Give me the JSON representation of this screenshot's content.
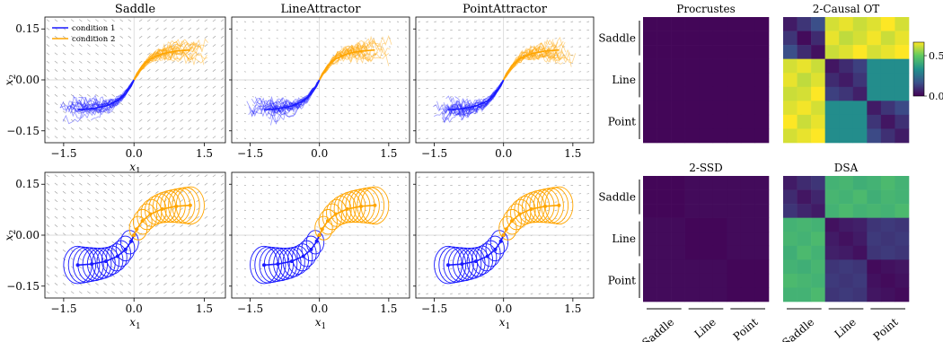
{
  "chart_data": [
    {
      "type": "line",
      "title": "Saddle",
      "xlabel": "x_1",
      "ylabel": "x_2",
      "xticks": [
        "−1.5",
        "0.0",
        "1.5"
      ],
      "yticks": [
        "0.15",
        "0.00",
        "−0.15"
      ],
      "xlim": [
        -1.9,
        1.95
      ],
      "ylim": [
        -0.185,
        0.185
      ],
      "trial_style": "noisy",
      "legend": [
        "condition 1",
        "condition 2"
      ],
      "series": [
        {
          "name": "condition 1",
          "x": [
            -1.2,
            -0.9,
            -0.6,
            -0.35,
            -0.18,
            -0.06,
            0.0
          ],
          "y": [
            -0.088,
            -0.085,
            -0.077,
            -0.062,
            -0.042,
            -0.018,
            0.0
          ]
        },
        {
          "name": "condition 2",
          "x": [
            0.0,
            0.06,
            0.18,
            0.35,
            0.6,
            0.9,
            1.2
          ],
          "y": [
            0.0,
            0.018,
            0.042,
            0.062,
            0.077,
            0.085,
            0.088
          ]
        }
      ]
    },
    {
      "type": "line",
      "title": "LineAttractor",
      "xlabel": "",
      "ylabel": "",
      "xticks": [
        "−1.5",
        "0.0",
        "1.5"
      ],
      "yticks": [],
      "xlim": [
        -1.9,
        1.95
      ],
      "ylim": [
        -0.185,
        0.185
      ],
      "trial_style": "noisy",
      "series": [
        {
          "name": "condition 1",
          "x": [
            -1.2,
            -0.9,
            -0.6,
            -0.35,
            -0.18,
            -0.06,
            0.0
          ],
          "y": [
            -0.088,
            -0.085,
            -0.077,
            -0.062,
            -0.042,
            -0.018,
            0.0
          ]
        },
        {
          "name": "condition 2",
          "x": [
            0.0,
            0.06,
            0.18,
            0.35,
            0.6,
            0.9,
            1.2
          ],
          "y": [
            0.0,
            0.018,
            0.042,
            0.062,
            0.077,
            0.085,
            0.088
          ]
        }
      ]
    },
    {
      "type": "line",
      "title": "PointAttractor",
      "xlabel": "",
      "ylabel": "",
      "xticks": [
        "−1.5",
        "0.0",
        "1.5"
      ],
      "yticks": [],
      "xlim": [
        -1.9,
        1.95
      ],
      "ylim": [
        -0.185,
        0.185
      ],
      "trial_style": "noisy",
      "series": [
        {
          "name": "condition 1",
          "x": [
            -1.2,
            -0.9,
            -0.6,
            -0.35,
            -0.18,
            -0.06,
            0.0
          ],
          "y": [
            -0.088,
            -0.085,
            -0.077,
            -0.062,
            -0.042,
            -0.018,
            0.0
          ]
        },
        {
          "name": "condition 2",
          "x": [
            0.0,
            0.06,
            0.18,
            0.35,
            0.6,
            0.9,
            1.2
          ],
          "y": [
            0.0,
            0.018,
            0.042,
            0.062,
            0.077,
            0.085,
            0.088
          ]
        }
      ]
    },
    {
      "type": "line",
      "title": "",
      "xlabel": "x_1",
      "ylabel": "x_2",
      "xticks": [
        "−1.5",
        "0.0",
        "1.5"
      ],
      "yticks": [
        "0.15",
        "0.00",
        "−0.15"
      ],
      "xlim": [
        -1.9,
        1.95
      ],
      "ylim": [
        -0.185,
        0.185
      ],
      "trial_style": "loops",
      "series": [
        {
          "name": "condition 1",
          "x": [
            -1.2,
            -0.9,
            -0.6,
            -0.35,
            -0.18,
            -0.06,
            0.0
          ],
          "y": [
            -0.088,
            -0.085,
            -0.077,
            -0.062,
            -0.042,
            -0.018,
            0.0
          ]
        },
        {
          "name": "condition 2",
          "x": [
            0.0,
            0.06,
            0.18,
            0.35,
            0.6,
            0.9,
            1.2
          ],
          "y": [
            0.0,
            0.018,
            0.042,
            0.062,
            0.077,
            0.085,
            0.088
          ]
        }
      ]
    },
    {
      "type": "line",
      "title": "",
      "xlabel": "x_1",
      "ylabel": "",
      "xticks": [
        "−1.5",
        "0.0",
        "1.5"
      ],
      "yticks": [],
      "xlim": [
        -1.9,
        1.95
      ],
      "ylim": [
        -0.185,
        0.185
      ],
      "trial_style": "loops",
      "series": [
        {
          "name": "condition 1",
          "x": [
            -1.2,
            -0.9,
            -0.6,
            -0.35,
            -0.18,
            -0.06,
            0.0
          ],
          "y": [
            -0.088,
            -0.085,
            -0.077,
            -0.062,
            -0.042,
            -0.018,
            0.0
          ]
        },
        {
          "name": "condition 2",
          "x": [
            0.0,
            0.06,
            0.18,
            0.35,
            0.6,
            0.9,
            1.2
          ],
          "y": [
            0.0,
            0.018,
            0.042,
            0.062,
            0.077,
            0.085,
            0.088
          ]
        }
      ]
    },
    {
      "type": "line",
      "title": "",
      "xlabel": "x_1",
      "ylabel": "",
      "xticks": [
        "−1.5",
        "0.0",
        "1.5"
      ],
      "yticks": [],
      "xlim": [
        -1.9,
        1.95
      ],
      "ylim": [
        -0.185,
        0.185
      ],
      "trial_style": "loops",
      "series": [
        {
          "name": "condition 1",
          "x": [
            -1.2,
            -0.9,
            -0.6,
            -0.35,
            -0.18,
            -0.06,
            0.0
          ],
          "y": [
            -0.088,
            -0.085,
            -0.077,
            -0.062,
            -0.042,
            -0.018,
            0.0
          ]
        },
        {
          "name": "condition 2",
          "x": [
            0.0,
            0.06,
            0.18,
            0.35,
            0.6,
            0.9,
            1.2
          ],
          "y": [
            0.0,
            0.018,
            0.042,
            0.062,
            0.077,
            0.085,
            0.088
          ]
        }
      ]
    },
    {
      "type": "heatmap",
      "title": "Procrustes",
      "row_labels": [
        "Saddle",
        "Line",
        "Point"
      ],
      "col_labels": [],
      "values": [
        [
          0.01,
          0.01,
          0.01,
          0.01,
          0.01,
          0.01,
          0.01,
          0.01,
          0.01
        ],
        [
          0.01,
          0.01,
          0.01,
          0.01,
          0.01,
          0.01,
          0.01,
          0.01,
          0.01
        ],
        [
          0.01,
          0.01,
          0.01,
          0.01,
          0.01,
          0.01,
          0.01,
          0.01,
          0.01
        ],
        [
          0.01,
          0.01,
          0.01,
          0.01,
          0.01,
          0.01,
          0.01,
          0.01,
          0.01
        ],
        [
          0.01,
          0.01,
          0.01,
          0.01,
          0.01,
          0.01,
          0.01,
          0.01,
          0.01
        ],
        [
          0.01,
          0.01,
          0.01,
          0.01,
          0.01,
          0.01,
          0.01,
          0.01,
          0.01
        ],
        [
          0.01,
          0.01,
          0.01,
          0.01,
          0.01,
          0.01,
          0.01,
          0.01,
          0.01
        ],
        [
          0.01,
          0.01,
          0.01,
          0.01,
          0.01,
          0.01,
          0.01,
          0.01,
          0.01
        ],
        [
          0.01,
          0.01,
          0.01,
          0.01,
          0.01,
          0.01,
          0.01,
          0.01,
          0.01
        ]
      ]
    },
    {
      "type": "heatmap",
      "title": "2-Causal OT",
      "row_labels": [],
      "col_labels": [],
      "colorbar": {
        "ticks": [
          "0.5",
          "0.0"
        ],
        "range": [
          0.0,
          0.62
        ]
      },
      "values": [
        [
          0.05,
          0.1,
          0.15,
          0.58,
          0.6,
          0.57,
          0.59,
          0.62,
          0.58
        ],
        [
          0.1,
          0.02,
          0.08,
          0.6,
          0.56,
          0.58,
          0.61,
          0.57,
          0.6
        ],
        [
          0.15,
          0.08,
          0.03,
          0.57,
          0.59,
          0.62,
          0.58,
          0.6,
          0.62
        ],
        [
          0.58,
          0.6,
          0.57,
          0.04,
          0.08,
          0.12,
          0.3,
          0.3,
          0.3
        ],
        [
          0.6,
          0.56,
          0.59,
          0.08,
          0.05,
          0.1,
          0.3,
          0.3,
          0.3
        ],
        [
          0.57,
          0.58,
          0.62,
          0.12,
          0.1,
          0.06,
          0.3,
          0.3,
          0.3
        ],
        [
          0.59,
          0.61,
          0.58,
          0.3,
          0.3,
          0.3,
          0.05,
          0.1,
          0.14
        ],
        [
          0.62,
          0.57,
          0.6,
          0.3,
          0.3,
          0.3,
          0.1,
          0.04,
          0.09
        ],
        [
          0.58,
          0.6,
          0.62,
          0.3,
          0.3,
          0.3,
          0.14,
          0.09,
          0.05
        ]
      ]
    },
    {
      "type": "heatmap",
      "title": "2-SSD",
      "row_labels": [
        "Saddle",
        "Line",
        "Point"
      ],
      "col_labels": [
        "Saddle",
        "Line",
        "Point"
      ],
      "values": [
        [
          0.01,
          0.01,
          0.01,
          0.02,
          0.02,
          0.02,
          0.02,
          0.02,
          0.02
        ],
        [
          0.01,
          0.01,
          0.01,
          0.02,
          0.02,
          0.02,
          0.02,
          0.02,
          0.02
        ],
        [
          0.01,
          0.01,
          0.01,
          0.02,
          0.02,
          0.02,
          0.02,
          0.02,
          0.02
        ],
        [
          0.02,
          0.02,
          0.02,
          0.01,
          0.01,
          0.01,
          0.02,
          0.02,
          0.02
        ],
        [
          0.02,
          0.02,
          0.02,
          0.01,
          0.01,
          0.01,
          0.02,
          0.02,
          0.02
        ],
        [
          0.02,
          0.02,
          0.02,
          0.01,
          0.01,
          0.01,
          0.02,
          0.02,
          0.02
        ],
        [
          0.02,
          0.02,
          0.02,
          0.02,
          0.02,
          0.02,
          0.01,
          0.01,
          0.01
        ],
        [
          0.02,
          0.02,
          0.02,
          0.02,
          0.02,
          0.02,
          0.01,
          0.01,
          0.01
        ],
        [
          0.02,
          0.02,
          0.02,
          0.02,
          0.02,
          0.02,
          0.01,
          0.01,
          0.01
        ]
      ]
    },
    {
      "type": "heatmap",
      "title": "DSA",
      "row_labels": [],
      "col_labels": [
        "Saddle",
        "Line",
        "Point"
      ],
      "values": [
        [
          0.05,
          0.08,
          0.1,
          0.4,
          0.41,
          0.39,
          0.4,
          0.42,
          0.4
        ],
        [
          0.08,
          0.04,
          0.07,
          0.41,
          0.4,
          0.42,
          0.39,
          0.41,
          0.4
        ],
        [
          0.1,
          0.07,
          0.05,
          0.4,
          0.42,
          0.4,
          0.41,
          0.4,
          0.42
        ],
        [
          0.4,
          0.41,
          0.4,
          0.03,
          0.05,
          0.06,
          0.1,
          0.11,
          0.1
        ],
        [
          0.41,
          0.4,
          0.42,
          0.05,
          0.03,
          0.05,
          0.11,
          0.1,
          0.11
        ],
        [
          0.39,
          0.42,
          0.4,
          0.06,
          0.05,
          0.03,
          0.1,
          0.11,
          0.1
        ],
        [
          0.4,
          0.39,
          0.41,
          0.1,
          0.11,
          0.1,
          0.02,
          0.03,
          0.04
        ],
        [
          0.42,
          0.41,
          0.4,
          0.11,
          0.1,
          0.11,
          0.03,
          0.02,
          0.03
        ],
        [
          0.4,
          0.4,
          0.42,
          0.1,
          0.11,
          0.1,
          0.04,
          0.03,
          0.02
        ]
      ]
    }
  ],
  "colors": {
    "condition1": "#1a1aff",
    "condition2": "#ffa500",
    "grid": "#bbbbbb"
  },
  "vmax": 0.62
}
